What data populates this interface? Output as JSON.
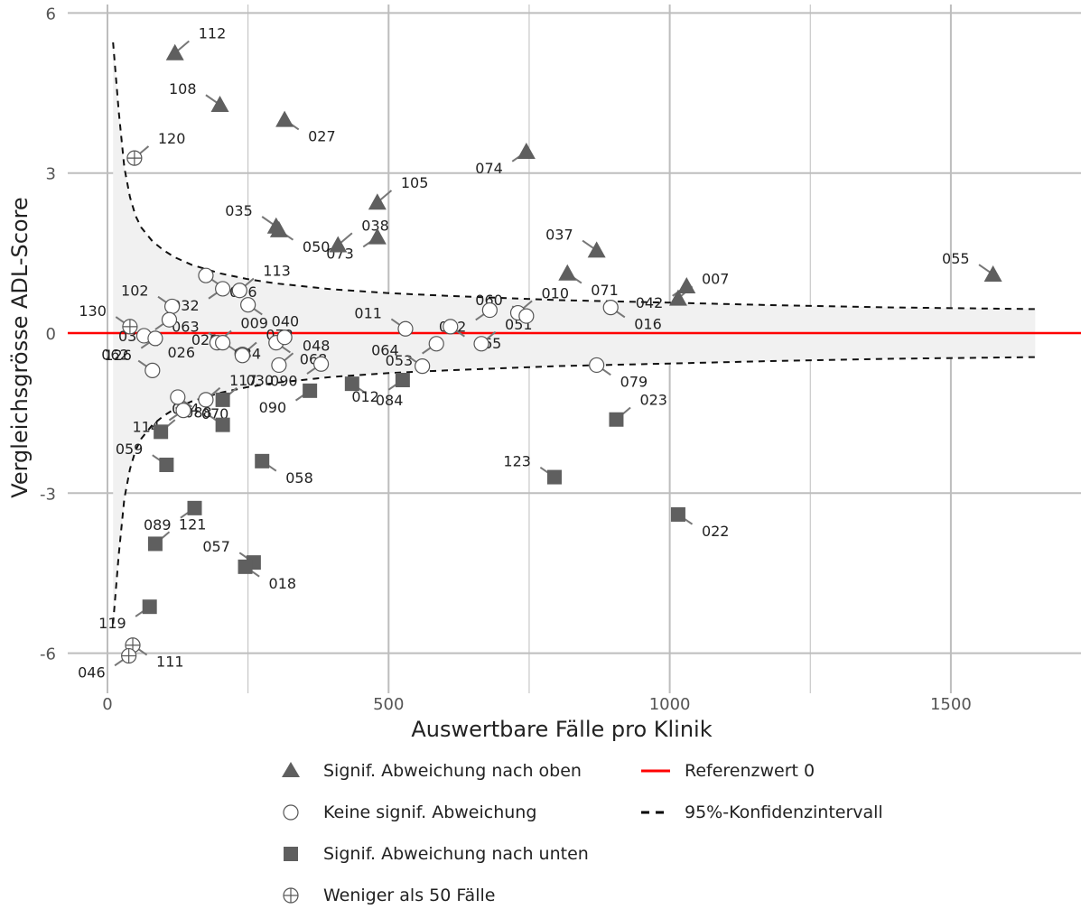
{
  "chart_data": {
    "type": "scatter",
    "title": "",
    "xlabel": "Auswertbare Fälle pro Klinik",
    "ylabel": "Vergleichsgrösse ADL-Score",
    "xlim": [
      -50,
      1730
    ],
    "ylim": [
      -6.7,
      6.1
    ],
    "x_ticks": [
      0,
      500,
      1000,
      1500
    ],
    "y_ticks": [
      -6,
      -3,
      0,
      3,
      6
    ],
    "x_tick_labels": [
      "0",
      "500",
      "1000",
      "1500"
    ],
    "y_tick_labels": [
      "-6",
      "-3",
      "0",
      "3",
      "6"
    ],
    "grid": true,
    "reference_line": 0,
    "colors": {
      "marker": "#5f5f5f",
      "open_stroke": "#555555",
      "reference": "#ff0000",
      "band": "#f1f1f1",
      "grid": "#bdbdbd",
      "label_line": "#777777"
    },
    "legend": {
      "position": "bottom",
      "items": [
        {
          "key": "up",
          "label": "Signif. Abweichung nach oben"
        },
        {
          "key": "ref",
          "label": "Referenzwert 0"
        },
        {
          "key": "none",
          "label": "Keine signif. Abweichung"
        },
        {
          "key": "ci",
          "label": "95%-Konfidenzintervall"
        },
        {
          "key": "down",
          "label": "Signif. Abweichung nach unten"
        },
        {
          "key": "few",
          "label": "Weniger als 50 Fälle"
        }
      ]
    },
    "confidence_interval": {
      "x": [
        10,
        20,
        30,
        40,
        50,
        60,
        80,
        100,
        120,
        150,
        200,
        250,
        300,
        400,
        500,
        600,
        800,
        1000,
        1200,
        1400,
        1650
      ],
      "upper": [
        5.45,
        4.15,
        3.1,
        2.55,
        2.2,
        1.98,
        1.72,
        1.55,
        1.42,
        1.28,
        1.12,
        1.01,
        0.93,
        0.82,
        0.75,
        0.7,
        0.62,
        0.57,
        0.52,
        0.48,
        0.45
      ],
      "lower": [
        -5.45,
        -4.15,
        -3.1,
        -2.55,
        -2.2,
        -1.98,
        -1.72,
        -1.55,
        -1.42,
        -1.28,
        -1.12,
        -1.01,
        -0.93,
        -0.82,
        -0.75,
        -0.7,
        -0.62,
        -0.57,
        -0.52,
        -0.48,
        -0.45
      ]
    },
    "series": [
      {
        "name": "Signif. Abweichung nach oben",
        "marker": "triangle",
        "points": [
          {
            "id": "112",
            "x": 120,
            "y": 5.25
          },
          {
            "id": "108",
            "x": 200,
            "y": 4.28
          },
          {
            "id": "027",
            "x": 315,
            "y": 4.0
          },
          {
            "id": "074",
            "x": 745,
            "y": 3.4
          },
          {
            "id": "105",
            "x": 480,
            "y": 2.45
          },
          {
            "id": "035",
            "x": 300,
            "y": 2.0
          },
          {
            "id": "050",
            "x": 305,
            "y": 1.93
          },
          {
            "id": "073",
            "x": 480,
            "y": 1.8
          },
          {
            "id": "038",
            "x": 410,
            "y": 1.65
          },
          {
            "id": "037",
            "x": 870,
            "y": 1.55
          },
          {
            "id": "071",
            "x": 818,
            "y": 1.12
          },
          {
            "id": "042",
            "x": 1030,
            "y": 0.88
          },
          {
            "id": "007",
            "x": 1015,
            "y": 0.65
          },
          {
            "id": "055",
            "x": 1575,
            "y": 1.1
          }
        ]
      },
      {
        "name": "Keine signif. Abweichung",
        "marker": "circle-open",
        "points": [
          {
            "id": "096",
            "x": 175,
            "y": 1.08
          },
          {
            "id": "032",
            "x": 205,
            "y": 0.83
          },
          {
            "id": "113",
            "x": 235,
            "y": 0.8
          },
          {
            "id": "102",
            "x": 115,
            "y": 0.5
          },
          {
            "id": "040",
            "x": 250,
            "y": 0.53
          },
          {
            "id": "036",
            "x": 110,
            "y": 0.25
          },
          {
            "id": "009",
            "x": 195,
            "y": -0.18
          },
          {
            "id": "063",
            "x": 205,
            "y": -0.18
          },
          {
            "id": "026",
            "x": 65,
            "y": -0.05
          },
          {
            "id": "126",
            "x": 85,
            "y": -0.1
          },
          {
            "id": "072",
            "x": 240,
            "y": -0.4
          },
          {
            "id": "029",
            "x": 240,
            "y": -0.42
          },
          {
            "id": "068",
            "x": 300,
            "y": -0.18
          },
          {
            "id": "034",
            "x": 315,
            "y": -0.08
          },
          {
            "id": "048",
            "x": 305,
            "y": -0.6
          },
          {
            "id": "062",
            "x": 80,
            "y": -0.7
          },
          {
            "id": "070",
            "x": 125,
            "y": -1.2
          },
          {
            "id": "114",
            "x": 135,
            "y": -1.45
          },
          {
            "id": "117",
            "x": 175,
            "y": -1.25
          },
          {
            "id": "011",
            "x": 530,
            "y": 0.08
          },
          {
            "id": "065",
            "x": 610,
            "y": 0.12
          },
          {
            "id": "082",
            "x": 680,
            "y": 0.43
          },
          {
            "id": "010",
            "x": 730,
            "y": 0.38
          },
          {
            "id": "060",
            "x": 745,
            "y": 0.32
          },
          {
            "id": "016",
            "x": 895,
            "y": 0.48
          },
          {
            "id": "053",
            "x": 585,
            "y": -0.2
          },
          {
            "id": "051",
            "x": 665,
            "y": -0.2
          },
          {
            "id": "064",
            "x": 560,
            "y": -0.62
          },
          {
            "id": "079",
            "x": 870,
            "y": -0.6
          },
          {
            "id": "090",
            "x": 380,
            "y": -0.58
          }
        ]
      },
      {
        "name": "Signif. Abweichung nach unten",
        "marker": "square",
        "points": [
          {
            "id": "030",
            "x": 205,
            "y": -1.25
          },
          {
            "id": "004",
            "x": 205,
            "y": -1.72
          },
          {
            "id": "084",
            "x": 435,
            "y": -0.95
          },
          {
            "id": "012",
            "x": 525,
            "y": -0.88
          },
          {
            "id": "088",
            "x": 95,
            "y": -1.85
          },
          {
            "id": "059",
            "x": 105,
            "y": -2.47
          },
          {
            "id": "058",
            "x": 275,
            "y": -2.4
          },
          {
            "id": "089",
            "x": 155,
            "y": -3.28
          },
          {
            "id": "121",
            "x": 85,
            "y": -3.95
          },
          {
            "id": "057",
            "x": 260,
            "y": -4.3
          },
          {
            "id": "018",
            "x": 245,
            "y": -4.38
          },
          {
            "id": "119",
            "x": 75,
            "y": -5.13
          },
          {
            "id": "023",
            "x": 905,
            "y": -1.62
          },
          {
            "id": "123",
            "x": 795,
            "y": -2.7
          },
          {
            "id": "022",
            "x": 1015,
            "y": -3.4
          },
          {
            "id": "090b",
            "x": 360,
            "y": -1.08
          }
        ]
      },
      {
        "name": "Weniger als 50 Fälle",
        "marker": "circle-plus",
        "points": [
          {
            "id": "120",
            "x": 48,
            "y": 3.28
          },
          {
            "id": "130",
            "x": 40,
            "y": 0.12
          },
          {
            "id": "111",
            "x": 45,
            "y": -5.85
          },
          {
            "id": "046",
            "x": 38,
            "y": -6.05
          }
        ]
      }
    ]
  }
}
